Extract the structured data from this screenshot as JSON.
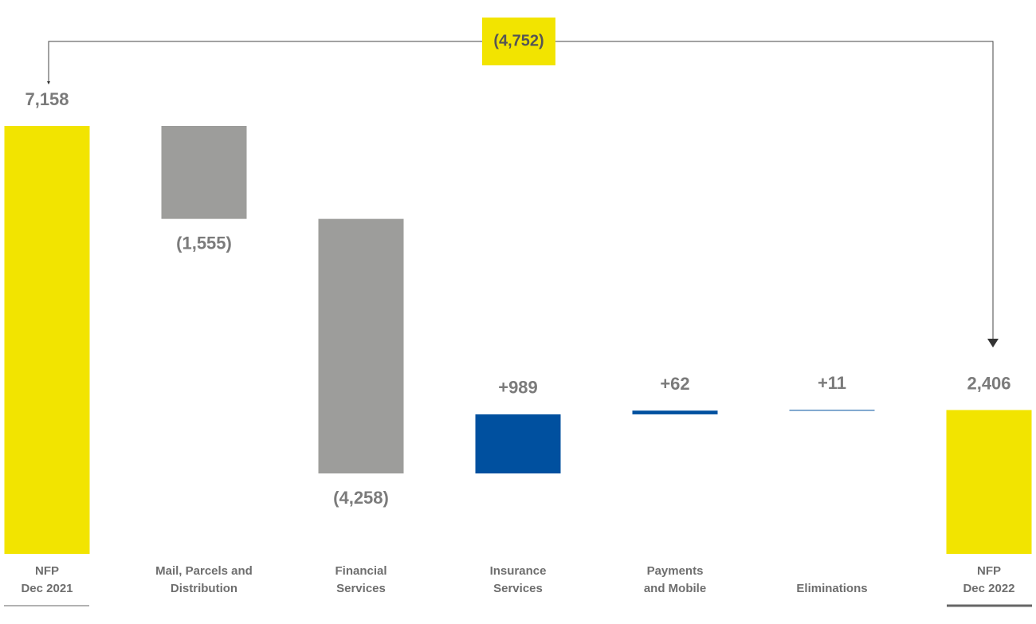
{
  "chart_data": {
    "type": "waterfall",
    "categories": [
      [
        "NFP",
        "Dec 2021"
      ],
      [
        "Mail, Parcels and",
        "Distribution"
      ],
      [
        "Financial",
        "Services"
      ],
      [
        "Insurance",
        "Services"
      ],
      [
        "Payments",
        "and Mobile"
      ],
      [
        "Eliminations"
      ],
      [
        "NFP",
        "Dec 2022"
      ]
    ],
    "values": [
      7158,
      -1555,
      -4258,
      989,
      62,
      11,
      2406
    ],
    "value_labels": [
      "7,158",
      "(1,555)",
      "(4,258)",
      "+989",
      "+62",
      "+11",
      "2,406"
    ],
    "measure": [
      "absolute",
      "relative",
      "relative",
      "relative",
      "relative",
      "relative",
      "absolute"
    ],
    "colors": {
      "total": "#f2e400",
      "decrease": "#9d9d9b",
      "increase": "#00509f"
    },
    "total_change": {
      "value": -4752,
      "label": "(4,752)"
    }
  }
}
